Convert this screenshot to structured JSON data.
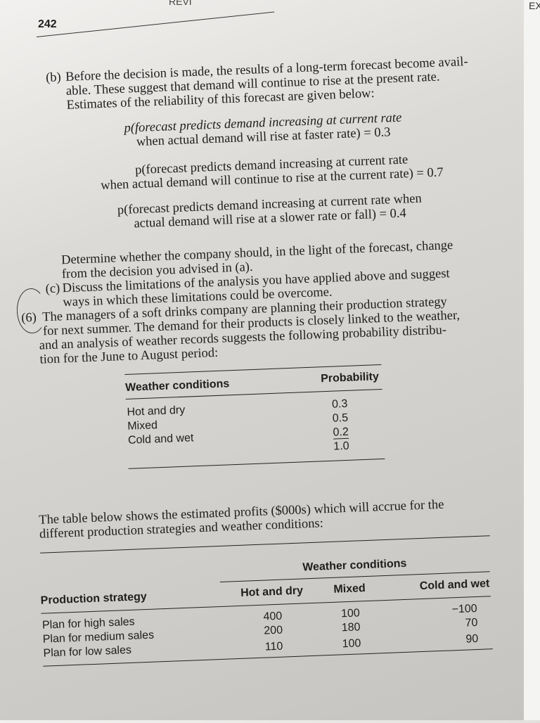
{
  "page_number": "242",
  "running_head": "REVI",
  "next_page_head": "EX",
  "part_b": {
    "label": "(b)",
    "lines": [
      "Before the decision is made, the results of a long-term forecast become avail-",
      "able. These suggest that demand will continue to rise at the present rate.",
      "Estimates of the reliability of this forecast are given below:"
    ],
    "probabilities": [
      [
        "p(forecast predicts demand increasing at current rate",
        "when actual demand will rise at faster rate) = 0.3"
      ],
      [
        "p(forecast predicts demand increasing at current rate",
        "when actual demand will continue to rise at the current rate) = 0.7"
      ],
      [
        "p(forecast predicts demand increasing at current rate when",
        "actual demand will rise at a slower rate or fall) = 0.4"
      ]
    ],
    "determine": [
      "Determine whether the company should, in the light of the forecast, change",
      "from the decision you advised in (a)."
    ]
  },
  "part_c": {
    "label": "(c)",
    "lines": [
      "Discuss the limitations of the analysis you have applied above and suggest",
      "ways in which these limitations could be overcome."
    ]
  },
  "q6": {
    "label": "(6)",
    "lines": [
      "The managers of a soft drinks company are planning their production strategy",
      "for next summer. The demand for their products is closely linked to the weather,",
      "and an analysis of weather records suggests the following probability distribu-",
      "tion for the June to August period:"
    ]
  },
  "weather_table": {
    "headers": [
      "Weather conditions",
      "Probability"
    ],
    "rows": [
      [
        "Hot and dry",
        "0.3"
      ],
      [
        "Mixed",
        "0.5"
      ],
      [
        "Cold and wet",
        "0.2"
      ]
    ],
    "total": "1.0"
  },
  "profits_intro": [
    "The table below shows the estimated profits ($000s) which will accrue for the",
    "different production strategies and weather conditions:"
  ],
  "profits_table": {
    "group_header": "Weather conditions",
    "headers": [
      "Production strategy",
      "Hot and dry",
      "Mixed",
      "Cold and wet"
    ],
    "rows": [
      [
        "Plan for high sales",
        "400",
        "100",
        "−100"
      ],
      [
        "Plan for medium sales",
        "200",
        "180",
        "70"
      ],
      [
        "Plan for low sales",
        "110",
        "100",
        "90"
      ]
    ]
  }
}
